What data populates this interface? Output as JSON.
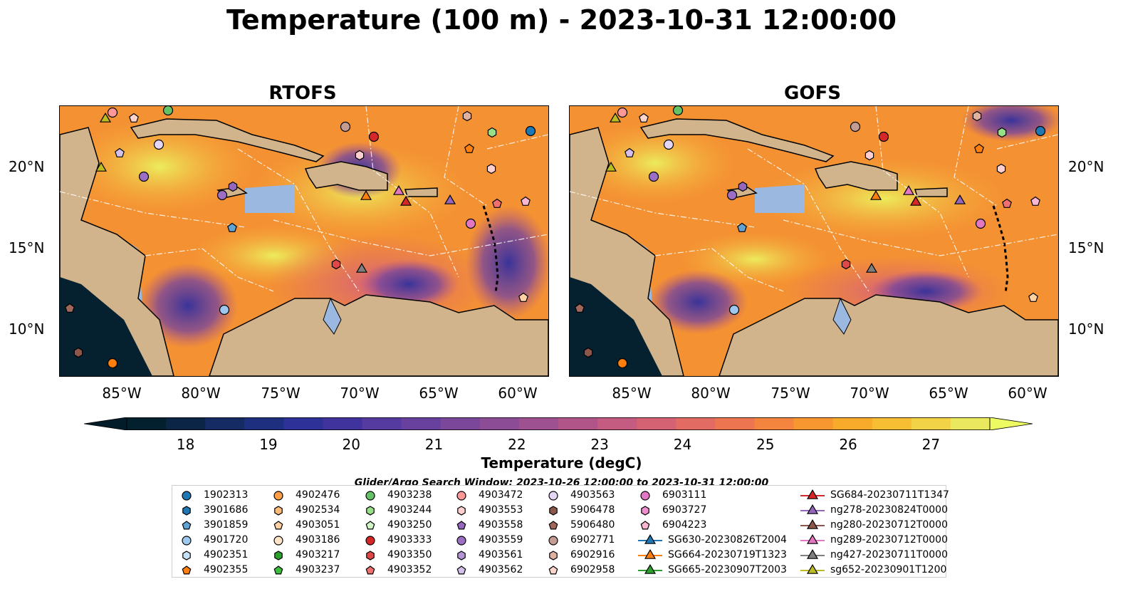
{
  "title": "Temperature (100 m) - 2023-10-31 12:00:00",
  "panels": [
    {
      "title": "RTOFS"
    },
    {
      "title": "GOFS"
    }
  ],
  "lat_labels": [
    "20°N",
    "15°N",
    "10°N"
  ],
  "lon_labels": [
    "85°W",
    "80°W",
    "75°W",
    "70°W",
    "65°W",
    "60°W"
  ],
  "colorbar": {
    "label": "Temperature (degC)",
    "ticks": [
      "18",
      "19",
      "20",
      "21",
      "22",
      "23",
      "24",
      "25",
      "26",
      "27"
    ],
    "colors": [
      "#03202f",
      "#0b2546",
      "#142b63",
      "#1f2f80",
      "#2e3197",
      "#41339e",
      "#553a9f",
      "#68409d",
      "#7a479a",
      "#8c4d96",
      "#9e5190",
      "#b15589",
      "#c45b80",
      "#d46273",
      "#e26b63",
      "#ed7651",
      "#f4853f",
      "#f7972f",
      "#f8aa2a",
      "#f7bd33",
      "#f2d246",
      "#e9e85f"
    ],
    "over_color": "#eefa62",
    "under_color": "#031c29"
  },
  "search_window": "Glider/Argo Search Window: 2023-10-26 12:00:00 to 2023-10-31 12:00:00",
  "legend": [
    [
      {
        "label": "1902313",
        "marker": "circle",
        "color": "#1f77b4"
      },
      {
        "label": "3901686",
        "marker": "hexagon",
        "color": "#1f77b4"
      },
      {
        "label": "3901859",
        "marker": "pentagon",
        "color": "#5fa2d3"
      },
      {
        "label": "4901720",
        "marker": "circle",
        "color": "#9ec8ee"
      },
      {
        "label": "4902351",
        "marker": "hexagon",
        "color": "#c6e2f7"
      },
      {
        "label": "4902355",
        "marker": "pentagon",
        "color": "#ff7f0e"
      }
    ],
    [
      {
        "label": "4902476",
        "marker": "circle",
        "color": "#ff9f48"
      },
      {
        "label": "4902534",
        "marker": "hexagon",
        "color": "#ffbb78"
      },
      {
        "label": "4903051",
        "marker": "pentagon",
        "color": "#ffd1a3"
      },
      {
        "label": "4903186",
        "marker": "circle",
        "color": "#ffe5c8"
      },
      {
        "label": "4903217",
        "marker": "hexagon",
        "color": "#2ca02c"
      },
      {
        "label": "4903237",
        "marker": "pentagon",
        "color": "#3cbf3c"
      }
    ],
    [
      {
        "label": "4903238",
        "marker": "circle",
        "color": "#66c266"
      },
      {
        "label": "4903244",
        "marker": "hexagon",
        "color": "#98df8a"
      },
      {
        "label": "4903250",
        "marker": "pentagon",
        "color": "#d2f5c8"
      },
      {
        "label": "4903333",
        "marker": "circle",
        "color": "#d62728"
      },
      {
        "label": "4903350",
        "marker": "hexagon",
        "color": "#e04848"
      },
      {
        "label": "4903352",
        "marker": "pentagon",
        "color": "#f07070"
      }
    ],
    [
      {
        "label": "4903472",
        "marker": "circle",
        "color": "#ff9896"
      },
      {
        "label": "4903553",
        "marker": "hexagon",
        "color": "#ffd0cf"
      },
      {
        "label": "4903558",
        "marker": "pentagon",
        "color": "#9467bd"
      },
      {
        "label": "4903559",
        "marker": "circle",
        "color": "#9c6fc4"
      },
      {
        "label": "4903561",
        "marker": "hexagon",
        "color": "#b594d6"
      },
      {
        "label": "4903562",
        "marker": "pentagon",
        "color": "#d4c0ea"
      }
    ],
    [
      {
        "label": "4903563",
        "marker": "circle",
        "color": "#e4d6f5"
      },
      {
        "label": "5906478",
        "marker": "hexagon",
        "color": "#8c564b"
      },
      {
        "label": "5906480",
        "marker": "pentagon",
        "color": "#a0685c"
      },
      {
        "label": "6902771",
        "marker": "circle",
        "color": "#c49c94"
      },
      {
        "label": "6902916",
        "marker": "hexagon",
        "color": "#e0b0a0"
      },
      {
        "label": "6902958",
        "marker": "pentagon",
        "color": "#fbd5cc"
      }
    ],
    [
      {
        "label": "6903111",
        "marker": "circle",
        "color": "#e377c2"
      },
      {
        "label": "6903727",
        "marker": "hexagon",
        "color": "#f08fd0"
      },
      {
        "label": "6904223",
        "marker": "pentagon",
        "color": "#f7b6d2"
      },
      {
        "label": "SG630-20230826T2004",
        "marker": "triangle-line",
        "color": "#1f77b4"
      },
      {
        "label": "SG664-20230719T1323",
        "marker": "triangle-line",
        "color": "#ff7f0e"
      },
      {
        "label": "SG665-20230907T2003",
        "marker": "triangle-line",
        "color": "#2ca02c"
      }
    ],
    [
      {
        "label": "SG684-20230711T1347",
        "marker": "triangle-line",
        "color": "#d62728"
      },
      {
        "label": "ng278-20230824T0000",
        "marker": "triangle-line",
        "color": "#9467bd"
      },
      {
        "label": "ng280-20230712T0000",
        "marker": "triangle-line",
        "color": "#8c564b"
      },
      {
        "label": "ng289-20230712T0000",
        "marker": "triangle-line",
        "color": "#e377c2"
      },
      {
        "label": "ng427-20230711T0000",
        "marker": "triangle-line",
        "color": "#7f7f7f"
      },
      {
        "label": "sg652-20230901T1200",
        "marker": "triangle-line",
        "color": "#bcbd22"
      }
    ]
  ],
  "colors": {
    "land": "#d2b48c",
    "shallow_water": "#9ab8e0",
    "warm_field": "#f7a234"
  }
}
